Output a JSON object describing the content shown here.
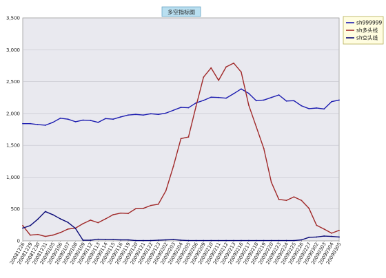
{
  "chart_data": {
    "type": "line",
    "title": "多空指标图",
    "xlabel": "",
    "ylabel": "",
    "ylim": [
      0,
      3500
    ],
    "yticks": [
      0,
      500,
      1000,
      1500,
      2000,
      2500,
      3000,
      3500
    ],
    "ytick_labels": [
      "0",
      "500",
      "1,000",
      "1,500",
      "2,000",
      "2,500",
      "3,000",
      "3,500"
    ],
    "grid": true,
    "legend_position": "top-right",
    "categories": [
      "20081226",
      "20081229",
      "20081230",
      "20081231",
      "20090105",
      "20090106",
      "20090107",
      "20090108",
      "20090109",
      "20090112",
      "20090113",
      "20090114",
      "20090115",
      "20090116",
      "20090119",
      "20090120",
      "20090121",
      "20090122",
      "20090123",
      "20090202",
      "20090203",
      "20090204",
      "20090205",
      "20090206",
      "20090209",
      "20090210",
      "20090211",
      "20090212",
      "20090213",
      "20090216",
      "20090217",
      "20090218",
      "20090219",
      "20090220",
      "20090223",
      "20090224",
      "20090225",
      "20090226",
      "20090227",
      "20090302",
      "20090303",
      "20090304",
      "20090305"
    ],
    "series": [
      {
        "name": "sh999999",
        "color": "#1c1cb0",
        "values": [
          1840,
          1840,
          1825,
          1815,
          1860,
          1925,
          1910,
          1870,
          1895,
          1890,
          1860,
          1920,
          1910,
          1945,
          1975,
          1985,
          1975,
          1995,
          1985,
          2005,
          2050,
          2095,
          2090,
          2165,
          2205,
          2255,
          2250,
          2240,
          2310,
          2385,
          2315,
          2200,
          2210,
          2250,
          2290,
          2195,
          2200,
          2120,
          2075,
          2085,
          2070,
          2185,
          2210
        ]
      },
      {
        "name": "sh多头线",
        "color": "#a02828",
        "values": [
          240,
          90,
          100,
          70,
          90,
          130,
          185,
          200,
          270,
          325,
          285,
          345,
          410,
          435,
          430,
          505,
          510,
          555,
          575,
          785,
          1170,
          1605,
          1630,
          2110,
          2570,
          2715,
          2520,
          2730,
          2790,
          2650,
          2130,
          1790,
          1450,
          920,
          650,
          635,
          690,
          635,
          510,
          245,
          185,
          120,
          165
        ]
      },
      {
        "name": "sh空头线",
        "color": "#0a0a78",
        "values": [
          200,
          240,
          340,
          460,
          410,
          345,
          290,
          195,
          10,
          10,
          25,
          20,
          20,
          15,
          15,
          5,
          5,
          5,
          10,
          15,
          20,
          10,
          5,
          5,
          5,
          5,
          5,
          5,
          5,
          5,
          5,
          5,
          5,
          5,
          5,
          5,
          5,
          15,
          55,
          60,
          75,
          70,
          60
        ]
      }
    ]
  }
}
